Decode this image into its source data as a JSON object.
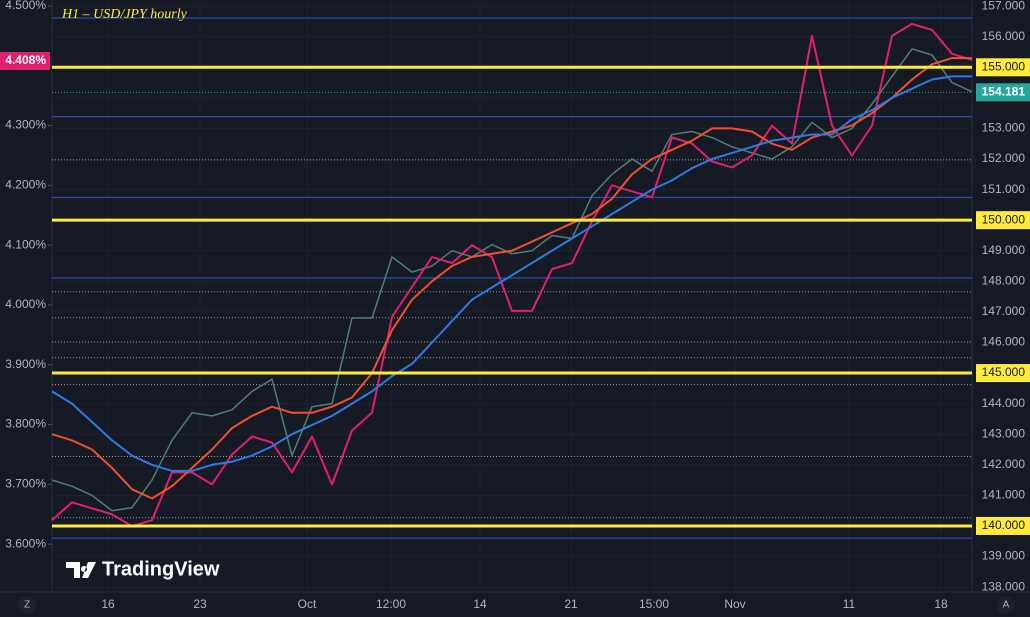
{
  "chart_data": {
    "type": "line",
    "title": "H1 – USD/JPY hourly",
    "watermark": "TradingView",
    "buttons": [
      "Z",
      "A"
    ],
    "x": [
      0,
      2,
      4,
      6,
      8,
      10,
      12,
      14,
      16,
      18,
      20,
      22,
      24,
      26,
      28,
      30,
      32,
      34,
      36,
      38,
      40,
      42,
      44,
      46,
      48,
      50,
      52,
      54,
      56,
      58,
      60,
      62,
      64,
      66,
      68,
      70,
      72,
      74,
      76,
      78,
      80,
      82,
      84,
      86,
      88,
      90,
      92
    ],
    "xlim": [
      0,
      92
    ],
    "xticks": [
      {
        "value": 5.6,
        "label": "16"
      },
      {
        "value": 14.8,
        "label": "23"
      },
      {
        "value": 25.5,
        "label": "Oct"
      },
      {
        "value": 33.9,
        "label": "12:00"
      },
      {
        "value": 42.8,
        "label": "14"
      },
      {
        "value": 51.9,
        "label": "21"
      },
      {
        "value": 60.2,
        "label": "15:00"
      },
      {
        "value": 68.3,
        "label": "Nov"
      },
      {
        "value": 79.7,
        "label": "11"
      },
      {
        "value": 88.9,
        "label": "18"
      }
    ],
    "ylim": [
      137.84,
      157.2
    ],
    "yticks": [
      {
        "value": 157,
        "label": "157.000"
      },
      {
        "value": 156,
        "label": "156.000"
      },
      {
        "value": 154,
        "label": "154.000"
      },
      {
        "value": 153,
        "label": "153.000"
      },
      {
        "value": 152,
        "label": "152.000"
      },
      {
        "value": 151,
        "label": "151.000"
      },
      {
        "value": 149,
        "label": "149.000"
      },
      {
        "value": 148,
        "label": "148.000"
      },
      {
        "value": 147,
        "label": "147.000"
      },
      {
        "value": 146,
        "label": "146.000"
      },
      {
        "value": 144,
        "label": "144.000"
      },
      {
        "value": 143,
        "label": "143.000"
      },
      {
        "value": 142,
        "label": "142.000"
      },
      {
        "value": 141,
        "label": "141.000"
      },
      {
        "value": 139,
        "label": "139.000"
      },
      {
        "value": 138,
        "label": "138.000"
      }
    ],
    "y2lim": [
      3.52,
      4.51
    ],
    "y2ticks": [
      {
        "value": 4.5,
        "label": "4.500%"
      },
      {
        "value": 4.3,
        "label": "4.300%"
      },
      {
        "value": 4.2,
        "label": "4.200%"
      },
      {
        "value": 4.1,
        "label": "4.100%"
      },
      {
        "value": 4.0,
        "label": "4.000%"
      },
      {
        "value": 3.9,
        "label": "3.900%"
      },
      {
        "value": 3.8,
        "label": "3.800%"
      },
      {
        "value": 3.7,
        "label": "3.700%"
      },
      {
        "value": 3.6,
        "label": "3.600%"
      }
    ],
    "levels": [
      {
        "value": 155,
        "label": "155.000"
      },
      {
        "value": 150,
        "label": "150.000"
      },
      {
        "value": 145,
        "label": "145.000"
      },
      {
        "value": 140,
        "label": "140.000"
      }
    ],
    "level_color": "#ffeb3b",
    "y2_levels": [
      4.48,
      4.315,
      4.18,
      4.045,
      3.61
    ],
    "y2_level_color": "#2e59c8",
    "dotted_levels": [
      151.97,
      147.66,
      146.81,
      146.02,
      145.5,
      144.62,
      142.27,
      140.27
    ],
    "last_price": 154.181,
    "last_price_color": "#26a69a",
    "last_yield": {
      "value": 4.408,
      "label": "4.408%"
    },
    "last_yield_color": "#e0206e",
    "series": [
      {
        "color": "#4f7f75",
        "values": [
          141.5,
          141.3,
          141.0,
          140.5,
          140.6,
          141.5,
          142.8,
          143.7,
          143.6,
          143.8,
          144.4,
          144.8,
          142.3,
          143.9,
          144.0,
          146.8,
          146.8,
          148.8,
          148.3,
          148.5,
          149.0,
          148.8,
          149.2,
          148.9,
          149.0,
          149.5,
          149.4,
          150.8,
          151.5,
          152.0,
          151.6,
          152.8,
          152.9,
          152.7,
          152.4,
          152.2,
          152.0,
          152.4,
          153.2,
          152.7,
          153.0,
          153.8,
          154.7,
          155.6,
          155.4,
          154.5,
          154.2
        ]
      },
      {
        "color": "#e0206e",
        "axis": "y2",
        "values": [
          3.64,
          3.67,
          3.66,
          3.65,
          3.63,
          3.64,
          3.72,
          3.72,
          3.7,
          3.75,
          3.78,
          3.77,
          3.72,
          3.78,
          3.7,
          3.79,
          3.82,
          3.98,
          4.03,
          4.08,
          4.07,
          4.1,
          4.08,
          3.99,
          3.99,
          4.06,
          4.07,
          4.14,
          4.2,
          4.19,
          4.18,
          4.28,
          4.27,
          4.24,
          4.23,
          4.25,
          4.3,
          4.27,
          4.45,
          4.3,
          4.25,
          4.3,
          4.45,
          4.47,
          4.46,
          4.42,
          4.41
        ]
      },
      {
        "color": "#f0502e",
        "values": [
          143.0,
          142.8,
          142.5,
          141.9,
          141.2,
          140.9,
          141.3,
          141.9,
          142.5,
          143.2,
          143.6,
          143.9,
          143.7,
          143.7,
          143.9,
          144.2,
          145.0,
          146.4,
          147.4,
          148.0,
          148.5,
          148.8,
          148.9,
          149.0,
          149.3,
          149.6,
          149.9,
          150.2,
          150.7,
          151.5,
          152.0,
          152.3,
          152.6,
          153.0,
          153.0,
          152.9,
          152.5,
          152.3,
          152.7,
          152.9,
          153.1,
          153.5,
          154.0,
          154.6,
          155.1,
          155.3,
          155.3
        ]
      },
      {
        "color": "#2d7be0",
        "values": [
          144.4,
          144.0,
          143.4,
          142.8,
          142.3,
          142.0,
          141.8,
          141.8,
          142.0,
          142.1,
          142.3,
          142.6,
          143.0,
          143.3,
          143.6,
          144.0,
          144.4,
          144.9,
          145.3,
          146.0,
          146.7,
          147.4,
          147.8,
          148.2,
          148.6,
          149.0,
          149.4,
          149.8,
          150.2,
          150.6,
          151.0,
          151.3,
          151.7,
          152.0,
          152.2,
          152.4,
          152.6,
          152.7,
          152.8,
          152.8,
          153.3,
          153.6,
          154.0,
          154.3,
          154.6,
          154.7,
          154.7
        ]
      }
    ]
  }
}
